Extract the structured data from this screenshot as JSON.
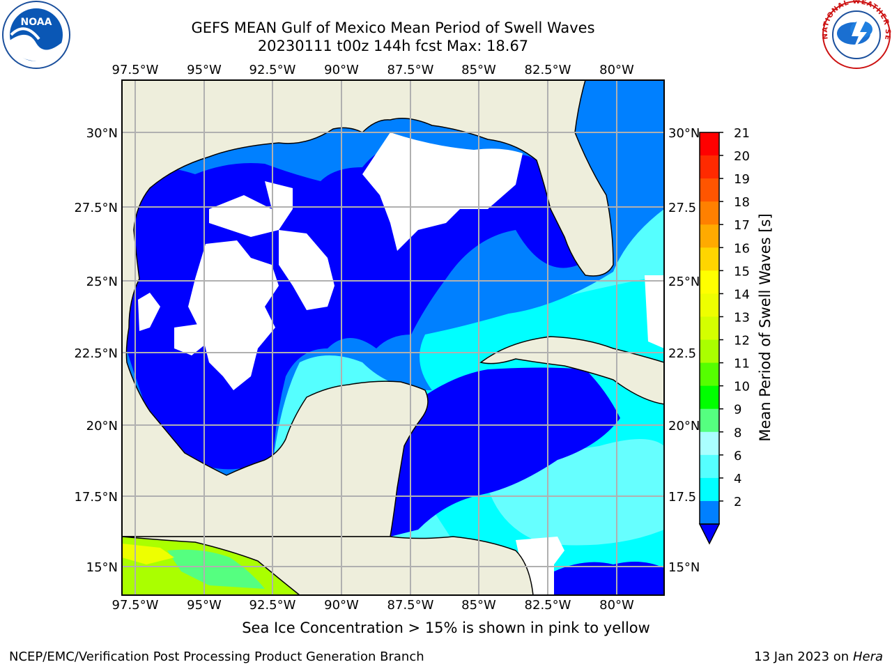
{
  "title": {
    "line1": "GEFS MEAN Gulf of Mexico Mean Period of Swell Waves",
    "line2": "20230111 t00z 144h fcst   Max: 18.67"
  },
  "map": {
    "lon_labels": [
      "97.5°W",
      "95°W",
      "92.5°W",
      "90°W",
      "87.5°W",
      "85°W",
      "82.5°W",
      "80°W"
    ],
    "lat_labels_left": [
      "30°N",
      "27.5°N",
      "25°N",
      "22.5°N",
      "20°N",
      "17.5°N",
      "15°N"
    ],
    "lat_labels_right": [
      "30°N",
      "27.5",
      "25°N",
      "22.5",
      "20°N",
      "17.5",
      "15°N"
    ],
    "land_color": "#eeeedc",
    "ocean_colors": {
      "lt4": "#0000ff",
      "c4_6": "#00ffff",
      "c6_8": "#66ffff"
    }
  },
  "colorbar": {
    "label": "Mean Period of Swell Waves [s]",
    "ticks": [
      "21",
      "20",
      "19",
      "18",
      "17",
      "16",
      "15",
      "14",
      "13",
      "12",
      "11",
      "10",
      "9",
      "8",
      "6",
      "4",
      "2"
    ],
    "colors_top_to_bottom": [
      "#ff0000",
      "#ff2a00",
      "#ff5500",
      "#ff8000",
      "#ffaa00",
      "#ffd500",
      "#ffff00",
      "#eeff00",
      "#d4ff00",
      "#aaff00",
      "#55ff00",
      "#00ff00",
      "#55ff80",
      "#aaffff",
      "#55ffff",
      "#00ffff",
      "#0080ff"
    ],
    "extend_color": "#0000ff"
  },
  "logos": {
    "left_text": "NOAA",
    "right_text": "NATIONAL WEATHER SERVICE"
  },
  "note": "Sea Ice Concentration > 15% is shown in pink to yellow",
  "footer": {
    "left": "NCEP/EMC/Verification Post Processing Product Generation Branch",
    "right_prefix": "13 Jan 2023 on ",
    "right_machine": "Hera"
  }
}
